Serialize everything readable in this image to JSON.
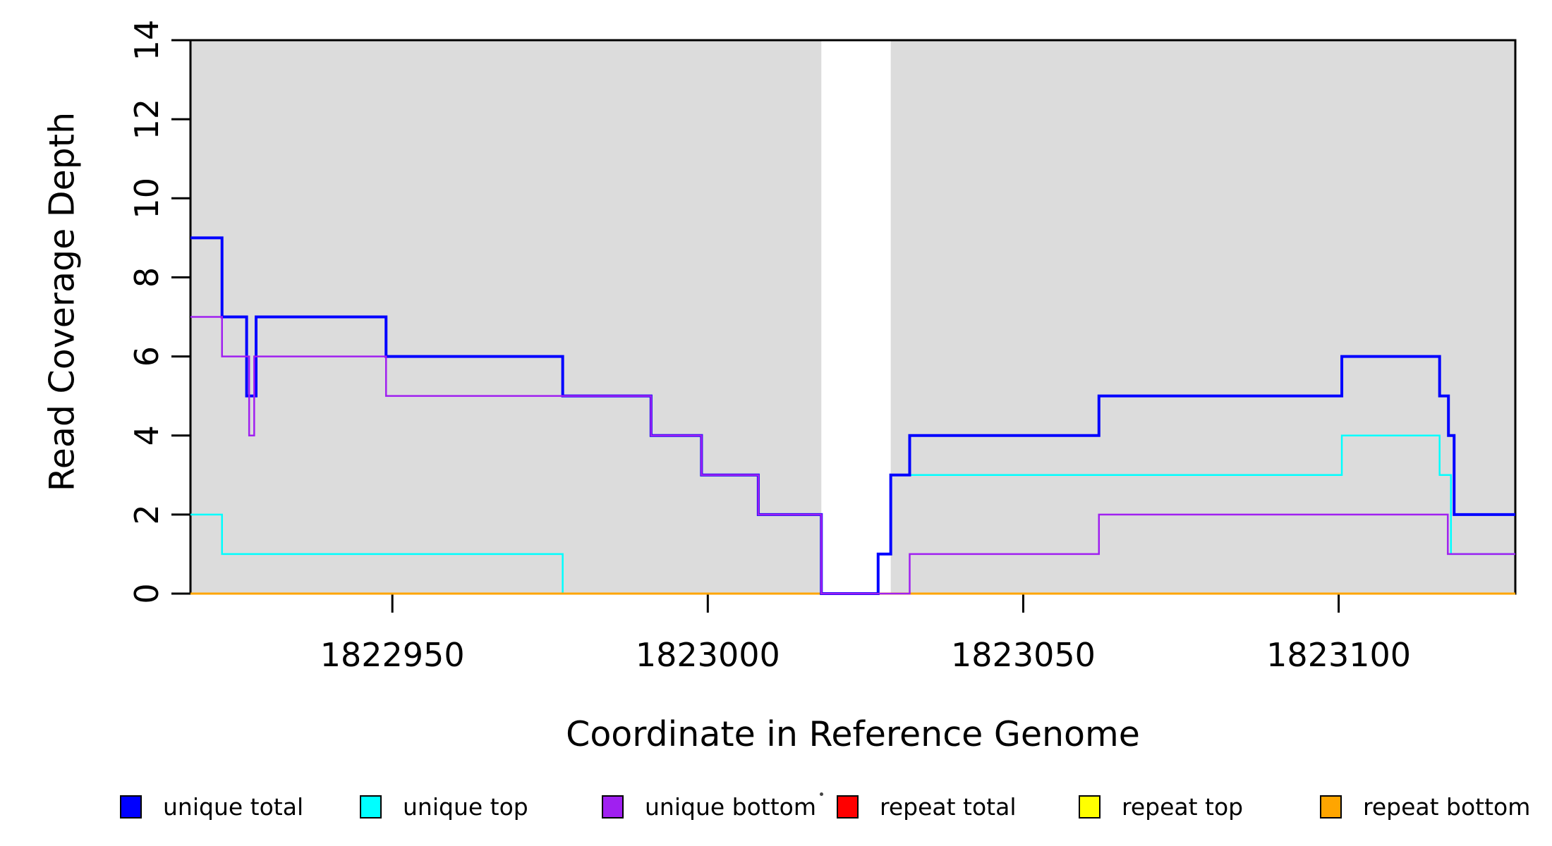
{
  "figure": {
    "y_axis_title": "Read Coverage Depth",
    "x_axis_title": "Coordinate in Reference Genome",
    "background_color": "#ffffff",
    "axis_color": "#000000",
    "shaded_region_color": "#DCDCDC"
  },
  "chart_data": {
    "type": "line",
    "subtype": "step-coverage-plot",
    "title": "",
    "xlabel": "Coordinate in Reference Genome",
    "ylabel": "Read Coverage Depth",
    "xlim": [
      1822918,
      1823128
    ],
    "ylim": [
      0,
      14
    ],
    "grid": false,
    "x_ticks": {
      "values": [
        1822950,
        1823000,
        1823050,
        1823100
      ],
      "labels": [
        "1822950",
        "1823000",
        "1823050",
        "1823100"
      ]
    },
    "y_ticks": {
      "values": [
        0,
        2,
        4,
        6,
        8,
        10,
        12,
        14
      ],
      "labels": [
        "0",
        "2",
        "4",
        "6",
        "8",
        "10",
        "12",
        "14"
      ]
    },
    "shaded_regions": [
      {
        "x0": 1822918,
        "x1": 1823018
      },
      {
        "x0": 1823029,
        "x1": 1823128
      }
    ],
    "draw_order": [
      "repeat total",
      "repeat top",
      "unique top",
      "repeat bottom",
      "unique total",
      "unique bottom"
    ],
    "series": [
      {
        "name": "unique total",
        "color": "#0000FF",
        "line_width": 4,
        "steps": [
          [
            1822918,
            9
          ],
          [
            1822923,
            7
          ],
          [
            1822926.9,
            5
          ],
          [
            1822928.4,
            7
          ],
          [
            1822949,
            6
          ],
          [
            1822977,
            5
          ],
          [
            1822991,
            4
          ],
          [
            1822999,
            3
          ],
          [
            1823008,
            2
          ],
          [
            1823018,
            0
          ],
          [
            1823027,
            1
          ],
          [
            1823029,
            3
          ],
          [
            1823032,
            4
          ],
          [
            1823062,
            5
          ],
          [
            1823100.5,
            6
          ],
          [
            1823116,
            5
          ],
          [
            1823117.4,
            4
          ],
          [
            1823118.3,
            2
          ]
        ]
      },
      {
        "name": "unique top",
        "color": "#00FFFF",
        "line_width": 2.5,
        "steps": [
          [
            1822918,
            2
          ],
          [
            1822923,
            1
          ],
          [
            1822977,
            0
          ],
          [
            1823027,
            1
          ],
          [
            1823029,
            3
          ],
          [
            1823100.5,
            4
          ],
          [
            1823116,
            3
          ],
          [
            1823117.8,
            1
          ]
        ]
      },
      {
        "name": "unique bottom",
        "color": "#A020F0",
        "line_width": 2.5,
        "steps": [
          [
            1822918,
            7
          ],
          [
            1822923,
            6
          ],
          [
            1822927.3,
            4
          ],
          [
            1822928.1,
            6
          ],
          [
            1822949,
            5
          ],
          [
            1822991,
            4
          ],
          [
            1822999,
            3
          ],
          [
            1823008,
            2
          ],
          [
            1823018,
            0
          ],
          [
            1823032,
            1
          ],
          [
            1823062,
            2
          ],
          [
            1823117.3,
            1
          ]
        ]
      },
      {
        "name": "repeat total",
        "color": "#FF0000",
        "line_width": 2.5,
        "steps": [
          [
            1822918,
            0
          ]
        ]
      },
      {
        "name": "repeat top",
        "color": "#FFFF00",
        "line_width": 2.5,
        "steps": [
          [
            1822918,
            0
          ]
        ]
      },
      {
        "name": "repeat bottom",
        "color": "#FFA500",
        "line_width": 3,
        "steps": [
          [
            1822918,
            0
          ]
        ]
      }
    ],
    "legend": {
      "position": "bottom",
      "entries": [
        {
          "label": "unique total",
          "color": "#0000FF"
        },
        {
          "label": "unique top",
          "color": "#00FFFF"
        },
        {
          "label": "unique bottom",
          "color": "#A020F0"
        },
        {
          "label": "repeat total",
          "color": "#FF0000"
        },
        {
          "label": "repeat top",
          "color": "#FFFF00"
        },
        {
          "label": "repeat bottom",
          "color": "#FFA500"
        }
      ]
    }
  }
}
